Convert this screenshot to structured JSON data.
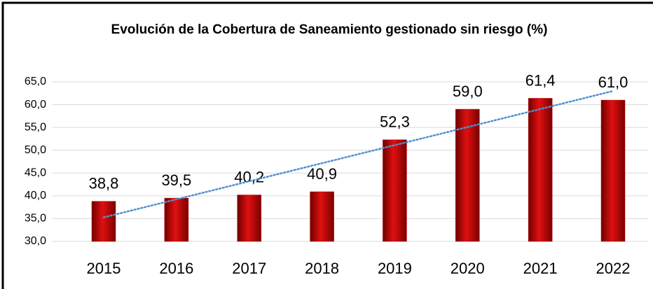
{
  "chart_data": {
    "type": "bar",
    "title": "Evolución de la Cobertura de Saneamiento gestionado sin riesgo (%)",
    "categories": [
      "2015",
      "2016",
      "2017",
      "2018",
      "2019",
      "2020",
      "2021",
      "2022"
    ],
    "values": [
      38.8,
      39.5,
      40.2,
      40.9,
      52.3,
      59.0,
      61.4,
      61.0
    ],
    "value_labels": [
      "38,8",
      "39,5",
      "40,2",
      "40,9",
      "52,3",
      "59,0",
      "61,4",
      "61,0"
    ],
    "color": "#c00000",
    "ylim": [
      30,
      65
    ],
    "yticks": [
      {
        "value": 30,
        "label": "30,0"
      },
      {
        "value": 35,
        "label": "35,0"
      },
      {
        "value": 40,
        "label": "40,0"
      },
      {
        "value": 45,
        "label": "45,0"
      },
      {
        "value": 50,
        "label": "50,0"
      },
      {
        "value": 55,
        "label": "55,0"
      },
      {
        "value": 60,
        "label": "60,0"
      },
      {
        "value": 65,
        "label": "65,0"
      }
    ],
    "grid": true,
    "trendline": "linear"
  }
}
